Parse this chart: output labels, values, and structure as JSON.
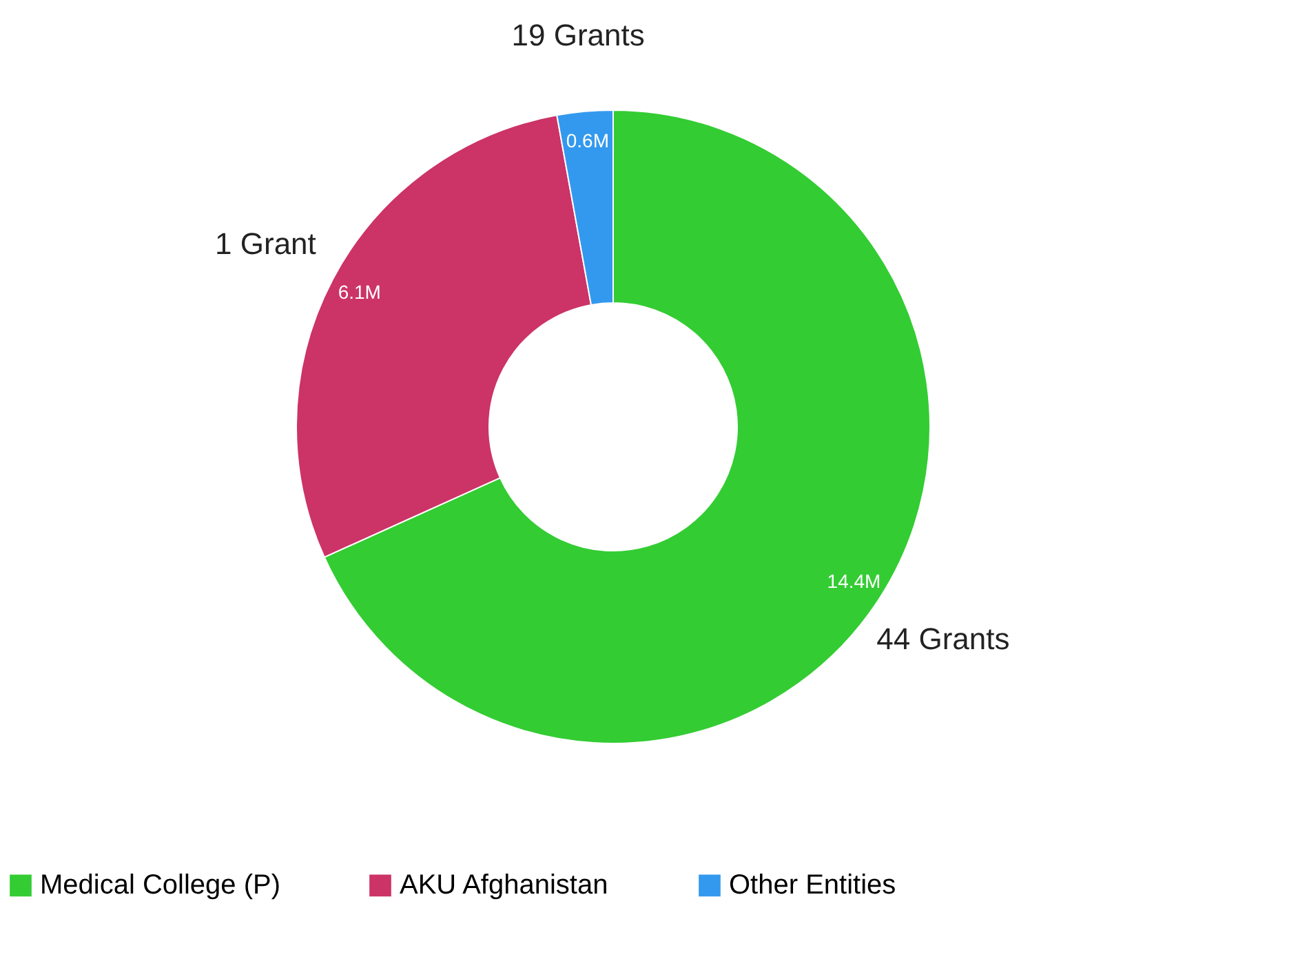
{
  "chart_data": {
    "type": "donut",
    "categories": [
      "Medical College (P)",
      "AKU Afghanistan",
      "Other Entities"
    ],
    "values": [
      14.4,
      6.1,
      0.6
    ],
    "colors": [
      "#33cc33",
      "#cc3366",
      "#3399ee"
    ],
    "value_labels": [
      "14.4M",
      "6.1M",
      "0.6M"
    ],
    "annotations": [
      {
        "text": "44 Grants",
        "x": "Medical College (P)"
      },
      {
        "text": "1 Grant",
        "x": "AKU Afghanistan"
      },
      {
        "text": "19 Grants",
        "x": "Other Entities"
      }
    ],
    "legend": "bottom"
  }
}
